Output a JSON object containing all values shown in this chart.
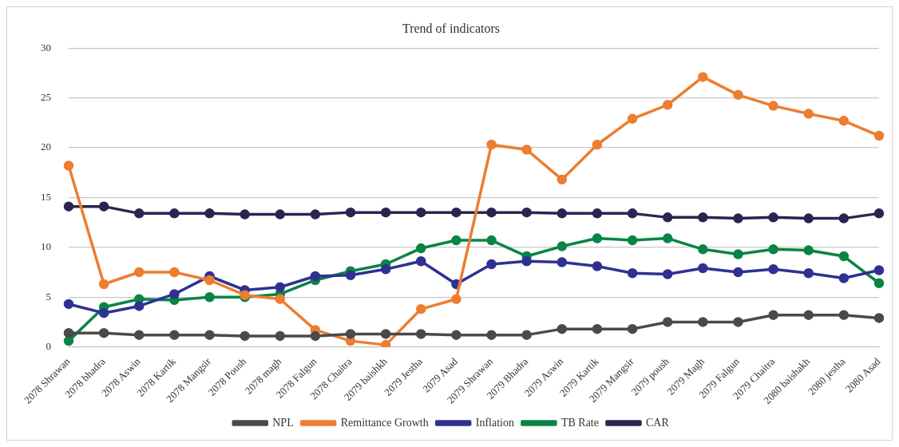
{
  "chart_data": {
    "type": "line",
    "title": "Trend of indicators",
    "categories": [
      "2078 Shrawan",
      "2078 bhadra",
      "2078 Aswin",
      "2078 Kartik",
      "2078 Mangsir",
      "2078 Poush",
      "2078 magh",
      "2078 Falgun",
      "2078 Chaitra",
      "2079 baishkh",
      "2079 Jestha",
      "2079 Asad",
      "2079 Shrawan",
      "2079 Bhadra",
      "2079 Aswin",
      "2079 Kartik",
      "2079 Mangsir",
      "2079 poush",
      "2079 Magh",
      "2079 Falgun",
      "2079 Chaitra",
      "2080 baishakh",
      "2080 jestha",
      "2080 Asad"
    ],
    "series": [
      {
        "name": "NPL",
        "color": "#4a4a4a",
        "values": [
          1.4,
          1.4,
          1.2,
          1.2,
          1.2,
          1.1,
          1.1,
          1.1,
          1.3,
          1.3,
          1.3,
          1.2,
          1.2,
          1.2,
          1.8,
          1.8,
          1.8,
          2.5,
          2.5,
          2.5,
          3.2,
          3.2,
          3.2,
          2.9
        ]
      },
      {
        "name": "Remittance Growth",
        "color": "#ed7d31",
        "values": [
          18.2,
          6.3,
          7.5,
          7.5,
          6.7,
          5.2,
          4.8,
          1.7,
          0.6,
          0.2,
          3.8,
          4.8,
          20.3,
          19.8,
          16.8,
          20.3,
          22.9,
          24.3,
          27.1,
          25.3,
          24.2,
          23.4,
          22.7,
          21.2
        ]
      },
      {
        "name": "Inflation",
        "color": "#2e3192",
        "values": [
          4.3,
          3.4,
          4.1,
          5.3,
          7.1,
          5.7,
          6.0,
          7.1,
          7.2,
          7.8,
          8.6,
          6.3,
          8.3,
          8.6,
          8.5,
          8.1,
          7.4,
          7.3,
          7.9,
          7.5,
          7.8,
          7.4,
          6.9,
          7.7
        ]
      },
      {
        "name": "TB Rate",
        "color": "#0a8445",
        "values": [
          0.6,
          4.0,
          4.8,
          4.7,
          5.0,
          5.0,
          5.3,
          6.7,
          7.6,
          8.3,
          9.9,
          10.7,
          10.7,
          9.1,
          10.1,
          10.9,
          10.7,
          10.9,
          9.8,
          9.3,
          9.8,
          9.7,
          9.1,
          6.4
        ]
      },
      {
        "name": "CAR",
        "color": "#2a2550",
        "values": [
          14.1,
          14.1,
          13.4,
          13.4,
          13.4,
          13.3,
          13.3,
          13.3,
          13.5,
          13.5,
          13.5,
          13.5,
          13.5,
          13.5,
          13.4,
          13.4,
          13.4,
          13.0,
          13.0,
          12.9,
          13.0,
          12.9,
          12.9,
          13.4
        ]
      }
    ],
    "ylim": [
      0,
      30
    ],
    "yticks": [
      0,
      5,
      10,
      15,
      20,
      25,
      30
    ],
    "grid": "y",
    "legend": "bottom",
    "marker": "circle"
  }
}
